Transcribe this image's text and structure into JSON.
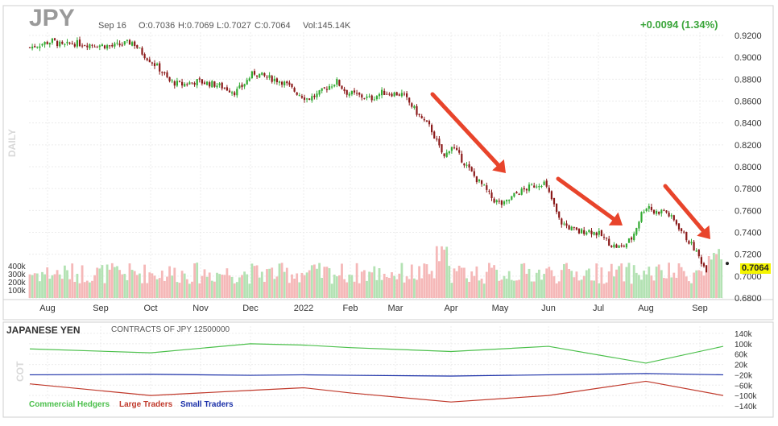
{
  "header": {
    "symbol": "JPY",
    "date": "Sep 16",
    "open": "O:0.7036",
    "high": "H:0.7069",
    "low": "L:0.7027",
    "close": "C:0.7064",
    "volume": "Vol:145.14K",
    "change": "+0.0094 (1.34%)",
    "side_label": "DAILY",
    "last_price": "0.7064"
  },
  "cot": {
    "title": "JAPANESE YEN",
    "subtitle": "CONTRACTS OF JPY 12500000",
    "side_label": "COT",
    "legend": [
      {
        "name": "Commercial Hedgers",
        "color": "#4cc04c"
      },
      {
        "name": "Large Traders",
        "color": "#c0392b"
      },
      {
        "name": "Small Traders",
        "color": "#1a2fa8"
      }
    ],
    "axis_ticks": [
      "140k",
      "100k",
      "60k",
      "20k",
      "−20k",
      "−60k",
      "−100k",
      "−140k"
    ]
  },
  "chart_data": [
    {
      "type": "candlestick",
      "title": "JPY",
      "x_ticks": [
        "Aug",
        "Sep",
        "Oct",
        "Nov",
        "Dec",
        "2022",
        "Feb",
        "Mar",
        "Apr",
        "May",
        "Jun",
        "Jul",
        "Aug",
        "Sep"
      ],
      "y_ticks": [
        "0.9200",
        "0.9000",
        "0.8800",
        "0.8600",
        "0.8400",
        "0.8200",
        "0.8000",
        "0.7800",
        "0.7600",
        "0.7400",
        "0.7200",
        "0.7000",
        "0.6800"
      ],
      "ylim": [
        0.68,
        0.92
      ],
      "x": [
        "Aug",
        "Sep",
        "Oct",
        "Nov",
        "Dec",
        "2022",
        "Feb",
        "Mar",
        "Apr",
        "May",
        "Jun",
        "Jul",
        "Aug",
        "Sep"
      ],
      "close_approx": [
        0.91,
        0.911,
        0.89,
        0.874,
        0.88,
        0.863,
        0.87,
        0.868,
        0.82,
        0.77,
        0.778,
        0.735,
        0.76,
        0.7064
      ],
      "last_close": 0.7064,
      "colors": {
        "up": "#33aa33",
        "down": "#8b1a1a"
      }
    },
    {
      "type": "bar",
      "title": "Volume",
      "y_ticks": [
        "400k",
        "300k",
        "200k",
        "100k"
      ],
      "ylim": [
        0,
        450
      ],
      "colors": {
        "up": "#b3e2b3",
        "down": "#f5b8b8"
      }
    },
    {
      "type": "line",
      "title": "JAPANESE YEN",
      "ylim": [
        -140,
        140
      ],
      "series": [
        {
          "name": "Commercial Hedgers",
          "color": "#4cc04c",
          "x": [
            "Aug",
            "Oct",
            "Dec",
            "2022",
            "Feb",
            "Apr",
            "Jun",
            "Aug",
            "Sep"
          ],
          "values": [
            80,
            65,
            100,
            95,
            85,
            70,
            90,
            25,
            90
          ]
        },
        {
          "name": "Large Traders",
          "color": "#c0392b",
          "x": [
            "Aug",
            "Oct",
            "Dec",
            "2022",
            "Feb",
            "Apr",
            "Jun",
            "Aug",
            "Sep"
          ],
          "values": [
            -55,
            -100,
            -80,
            -70,
            -90,
            -125,
            -100,
            -45,
            -100
          ]
        },
        {
          "name": "Small Traders",
          "color": "#1a2fa8",
          "x": [
            "Aug",
            "Oct",
            "Dec",
            "2022",
            "Feb",
            "Apr",
            "Jun",
            "Aug",
            "Sep"
          ],
          "values": [
            -20,
            -18,
            -22,
            -20,
            -22,
            -25,
            -20,
            -15,
            -20
          ]
        }
      ]
    }
  ]
}
